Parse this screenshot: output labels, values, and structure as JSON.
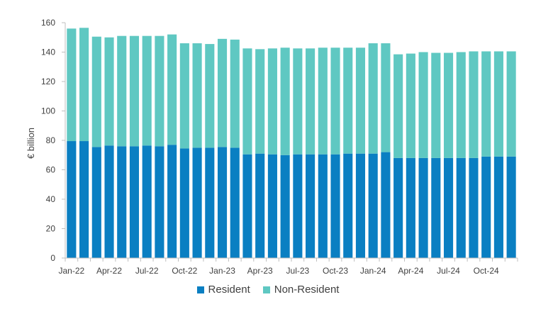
{
  "chart_data": {
    "type": "bar",
    "stacked": true,
    "title": "",
    "xlabel": "",
    "ylabel": "€ billion",
    "ylim": [
      0,
      160
    ],
    "yticks": [
      0,
      20,
      40,
      60,
      80,
      100,
      120,
      140,
      160
    ],
    "grid": false,
    "legend_position": "bottom",
    "categories": [
      "Jan-22",
      "Feb-22",
      "Mar-22",
      "Apr-22",
      "May-22",
      "Jun-22",
      "Jul-22",
      "Aug-22",
      "Sep-22",
      "Oct-22",
      "Nov-22",
      "Dec-22",
      "Jan-23",
      "Feb-23",
      "Mar-23",
      "Apr-23",
      "May-23",
      "Jun-23",
      "Jul-23",
      "Aug-23",
      "Sep-23",
      "Oct-23",
      "Nov-23",
      "Dec-23",
      "Jan-24",
      "Feb-24",
      "Mar-24",
      "Apr-24",
      "May-24",
      "Jun-24",
      "Jul-24",
      "Aug-24",
      "Sep-24",
      "Oct-24",
      "Nov-24",
      "Dec-24"
    ],
    "x_tick_labels": [
      "Jan-22",
      "Apr-22",
      "Jul-22",
      "Oct-22",
      "Jan-23",
      "Apr-23",
      "Jul-23",
      "Oct-23",
      "Jan-24",
      "Apr-24",
      "Jul-24",
      "Oct-24"
    ],
    "series": [
      {
        "name": "Resident",
        "color": "#0a7fc2",
        "values": [
          79.5,
          79.5,
          75.5,
          76.5,
          76,
          76,
          76.5,
          76,
          77,
          74.5,
          75,
          75,
          75.5,
          75,
          70.5,
          71,
          70.5,
          70,
          70.5,
          70.5,
          70.5,
          70.5,
          71,
          71,
          71,
          72,
          68,
          68,
          68,
          68,
          68,
          68,
          68,
          69,
          69,
          69
        ]
      },
      {
        "name": "Non-Resident",
        "color": "#5fc8c2",
        "values": [
          76.5,
          77,
          75,
          73.5,
          75,
          75,
          74.5,
          75,
          75,
          71.5,
          71,
          70.5,
          73.5,
          73.5,
          72,
          71,
          72,
          73,
          72,
          72,
          72.5,
          72.5,
          72,
          72,
          75,
          74,
          70.5,
          71,
          72,
          71.5,
          71.5,
          72,
          72.5,
          71.5,
          71.5,
          71.5
        ]
      }
    ]
  }
}
